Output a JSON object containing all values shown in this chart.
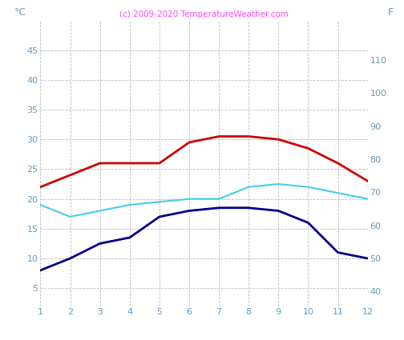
{
  "months": [
    1,
    2,
    3,
    4,
    5,
    6,
    7,
    8,
    9,
    10,
    11,
    12
  ],
  "red_line": [
    22,
    24,
    26,
    26,
    26,
    29.5,
    30.5,
    30.5,
    30,
    28.5,
    26,
    23
  ],
  "cyan_line": [
    19,
    17,
    18,
    19,
    19.5,
    20,
    20,
    22,
    22.5,
    22,
    21,
    20
  ],
  "navy_line": [
    8,
    10,
    12.5,
    13.5,
    17,
    18,
    18.5,
    18.5,
    18,
    16,
    11,
    10
  ],
  "red_color": "#cc0000",
  "cyan_color": "#44ccee",
  "navy_color": "#000088",
  "grid_color": "#bbbbbb",
  "title": "(c) 2009-2020 TemperatureWeather.com",
  "title_color": "#ff44ff",
  "left_label": "°C",
  "right_label": "F",
  "tick_color": "#6699bb",
  "ylim_left": [
    2,
    50
  ],
  "ylim_right": [
    35.6,
    122
  ],
  "yticks_left": [
    5,
    10,
    15,
    20,
    25,
    30,
    35,
    40,
    45
  ],
  "yticks_right": [
    40,
    50,
    60,
    70,
    80,
    90,
    100,
    110
  ],
  "background_color": "#ffffff"
}
